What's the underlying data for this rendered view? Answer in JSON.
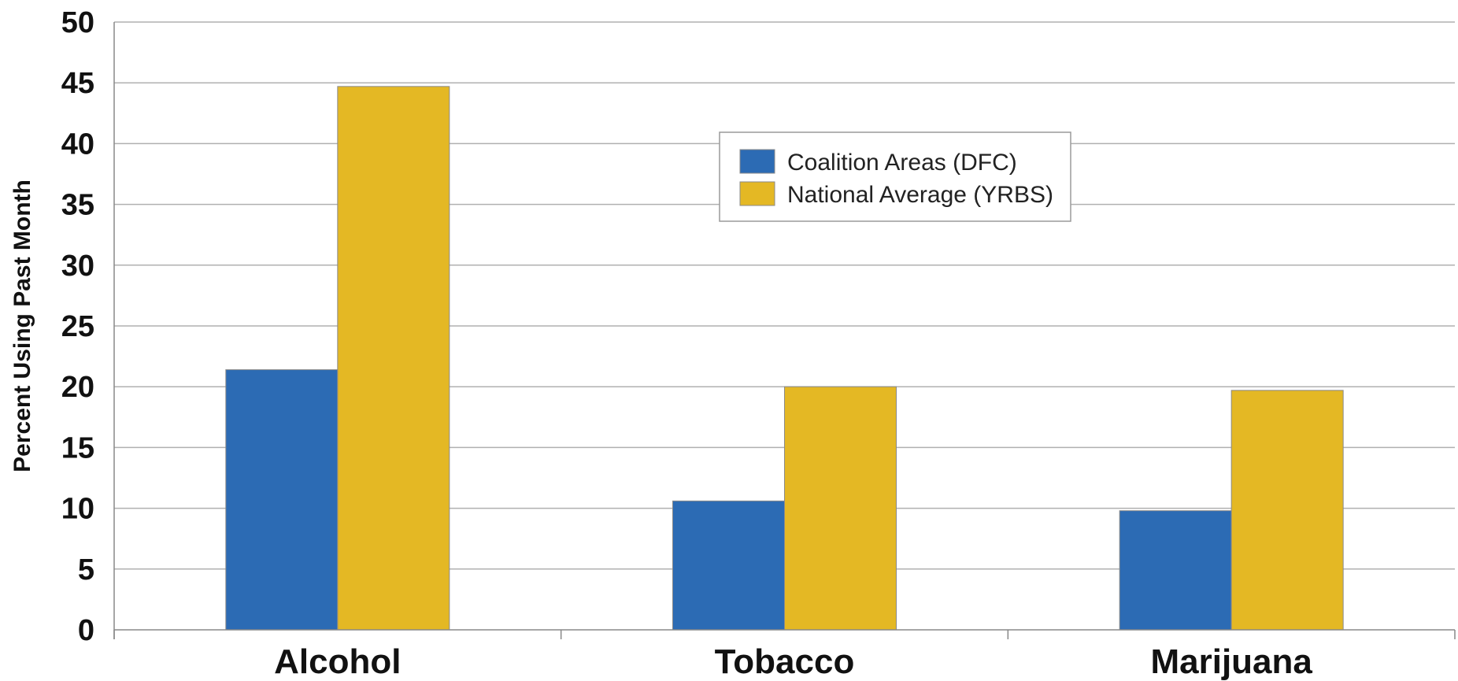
{
  "chart_data": {
    "type": "bar",
    "title": "",
    "xlabel": "",
    "ylabel": "Percent Using Past Month",
    "ylim": [
      0,
      50
    ],
    "yticks": [
      "0",
      "5",
      "10",
      "15",
      "20",
      "25",
      "30",
      "35",
      "40",
      "45",
      "50"
    ],
    "grid": true,
    "legend": "top-center",
    "categories": [
      "Alcohol",
      "Tobacco",
      "Marijuana"
    ],
    "series": [
      {
        "name": "Coalition Areas (DFC)",
        "color": "#2c6bb4",
        "values": [
          21.4,
          10.6,
          9.8
        ]
      },
      {
        "name": "National Average (YRBS)",
        "color": "#e4b824",
        "values": [
          44.7,
          20.0,
          19.7
        ]
      }
    ]
  }
}
